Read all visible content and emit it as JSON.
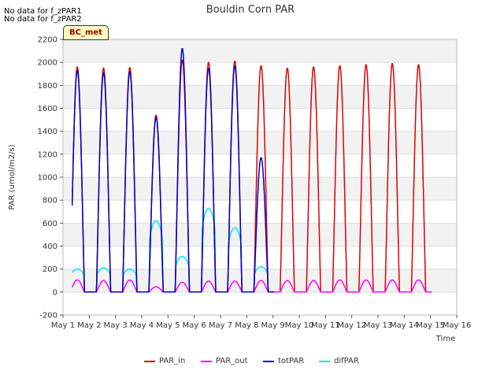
{
  "notes": [
    "No data for f_zPAR1",
    "No data for f_zPAR2"
  ],
  "badge": "BC_met",
  "chart_data": {
    "type": "line",
    "title": "Bouldin Corn PAR",
    "xlabel": "Time",
    "ylabel": "PAR (umol/m2/s)",
    "ylim": [
      -200,
      2200
    ],
    "xlim": [
      1,
      16
    ],
    "yticks": [
      -200,
      0,
      200,
      400,
      600,
      800,
      1000,
      1200,
      1400,
      1600,
      1800,
      2000,
      2200
    ],
    "xticks": [
      1,
      2,
      3,
      4,
      5,
      6,
      7,
      8,
      9,
      10,
      11,
      12,
      13,
      14,
      15,
      16
    ],
    "xtick_labels": [
      "May 1",
      "May 2",
      "May 3",
      "May 4",
      "May 5",
      "May 6",
      "May 7",
      "May 8",
      "May 9",
      "May 10",
      "May 11",
      "May 12",
      "May 13",
      "May 14",
      "May 15",
      "May 16"
    ],
    "x_data_range": [
      1.35,
      15.45
    ],
    "series": [
      {
        "name": "PAR_in",
        "color": "#e00000",
        "daily_peak": [
          1960,
          1950,
          1955,
          1540,
          2020,
          2000,
          2010,
          1970,
          1950,
          1960,
          1970,
          1980,
          1990,
          1980
        ]
      },
      {
        "name": "PAR_out",
        "color": "#ff00ff",
        "daily_peak": [
          105,
          100,
          105,
          45,
          85,
          95,
          95,
          100,
          100,
          100,
          105,
          105,
          105,
          105
        ]
      },
      {
        "name": "totPAR",
        "color": "#0000cc",
        "daily_peak": [
          1930,
          1910,
          1920,
          1520,
          2120,
          1950,
          1970,
          1170
        ]
      },
      {
        "name": "difPAR",
        "color": "#00e5ff",
        "daily_peak": [
          200,
          210,
          200,
          620,
          310,
          730,
          560,
          220
        ]
      }
    ]
  }
}
